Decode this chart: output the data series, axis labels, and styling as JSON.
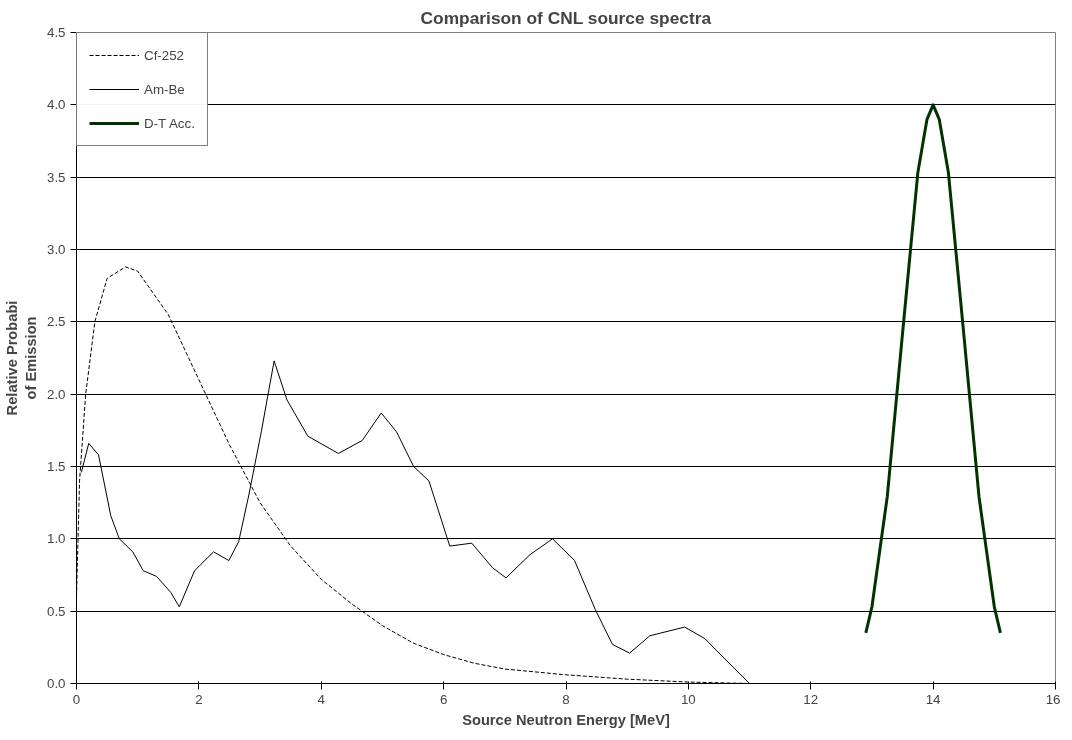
{
  "chart_data": {
    "type": "line",
    "title": "Comparison of CNL source spectra",
    "xlabel": "Source Neutron Energy [MeV]",
    "ylabel": "Relative Probabi\nof Emission",
    "xlim": [
      0,
      16
    ],
    "ylim": [
      0,
      4.5
    ],
    "xticks": [
      0,
      2,
      4,
      6,
      8,
      10,
      12,
      14,
      16
    ],
    "yticks": [
      {
        "value": 0,
        "label": "0.0"
      },
      {
        "value": 0.5,
        "label": "0.5"
      },
      {
        "value": 1,
        "label": "1.0"
      },
      {
        "value": 1.5,
        "label": "1.5"
      },
      {
        "value": 2,
        "label": "2.0"
      },
      {
        "value": 2.5,
        "label": "2.5"
      },
      {
        "value": 3,
        "label": "3.0"
      },
      {
        "value": 3.5,
        "label": "3.5"
      },
      {
        "value": 4,
        "label": "4.0"
      },
      {
        "value": 4.5,
        "label": "4.5"
      }
    ],
    "grid": "y",
    "legend": "top left",
    "marker": "none",
    "series": [
      {
        "name": "Cf-252",
        "color": "#000000",
        "line_style": "dashed",
        "x": [
          0,
          0.05,
          0.15,
          0.3,
          0.5,
          0.8,
          1.0,
          1.5,
          2,
          2.5,
          3,
          3.5,
          4,
          4.5,
          5,
          5.5,
          6,
          6.5,
          7,
          8,
          9,
          10,
          11
        ],
        "values": [
          0.6,
          1.4,
          2.0,
          2.5,
          2.8,
          2.88,
          2.85,
          2.55,
          2.1,
          1.65,
          1.25,
          0.95,
          0.72,
          0.55,
          0.4,
          0.28,
          0.2,
          0.14,
          0.1,
          0.06,
          0.03,
          0.01,
          0
        ]
      },
      {
        "name": "Am-Be",
        "color": "#000000",
        "line_style": "solid",
        "x": [
          0.08,
          0.2,
          0.36,
          0.56,
          0.7,
          0.92,
          1.09,
          1.31,
          1.54,
          1.68,
          1.93,
          2.24,
          2.49,
          2.65,
          2.82,
          3.02,
          3.23,
          3.44,
          3.78,
          4.28,
          4.67,
          4.98,
          5.23,
          5.51,
          5.76,
          6.1,
          6.46,
          6.8,
          7.02,
          7.41,
          7.78,
          8.14,
          8.48,
          8.76,
          9.04,
          9.37,
          9.94,
          10.27,
          10.55,
          11.0
        ],
        "values": [
          1.46,
          1.66,
          1.58,
          1.16,
          1.0,
          0.91,
          0.78,
          0.74,
          0.63,
          0.53,
          0.78,
          0.91,
          0.85,
          0.98,
          1.31,
          1.74,
          2.23,
          1.96,
          1.71,
          1.59,
          1.68,
          1.87,
          1.74,
          1.5,
          1.4,
          0.95,
          0.97,
          0.8,
          0.73,
          0.89,
          1.0,
          0.85,
          0.51,
          0.27,
          0.21,
          0.33,
          0.39,
          0.31,
          0.19,
          0
        ]
      },
      {
        "name": "D-T Acc.",
        "color": "#003300",
        "line_style": "solid",
        "x": [
          12.9,
          13.0,
          13.25,
          13.5,
          13.75,
          13.9,
          14.0,
          14.1,
          14.25,
          14.5,
          14.75,
          15.0,
          15.1
        ],
        "values": [
          0.35,
          0.53,
          1.29,
          2.42,
          3.53,
          3.9,
          4.0,
          3.9,
          3.53,
          2.42,
          1.29,
          0.53,
          0.35
        ]
      }
    ]
  }
}
